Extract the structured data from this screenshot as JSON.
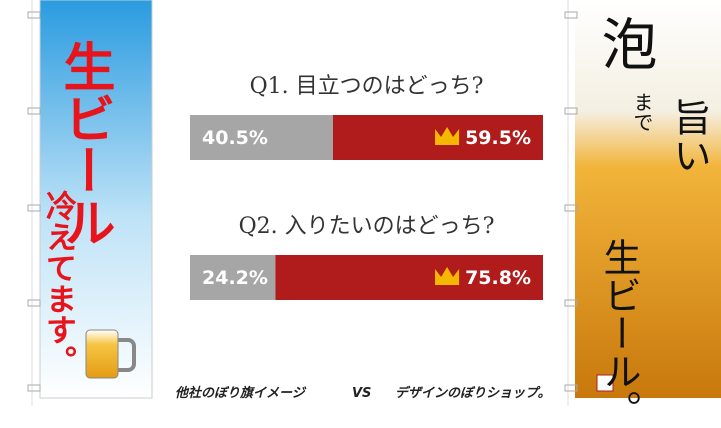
{
  "chart_data": [
    {
      "type": "stacked-bar",
      "title": "Q1. 目立つのはどっち?",
      "values": [
        40.5,
        59.5
      ],
      "value_labels": [
        "40.5%",
        "59.5%"
      ],
      "colors": [
        "#a6a6a6",
        "#b01c1c"
      ],
      "xlim": [
        0,
        100
      ]
    },
    {
      "type": "stacked-bar",
      "title": "Q2. 入りたいのはどっち?",
      "values": [
        24.2,
        75.8
      ],
      "value_labels": [
        "24.2%",
        "75.8%"
      ],
      "colors": [
        "#a6a6a6",
        "#b01c1c"
      ],
      "xlim": [
        0,
        100
      ]
    }
  ],
  "banners": {
    "left": {
      "title": "生ビール",
      "subtitle": "冷えてます。"
    },
    "right": {
      "foam": "泡",
      "made": "まで",
      "umai": "旨い",
      "title": "生ビール。"
    }
  },
  "footer": {
    "left": "他社のぼり旗イメージ",
    "vs": "VS",
    "right": "デザインのぼりショップ。"
  }
}
